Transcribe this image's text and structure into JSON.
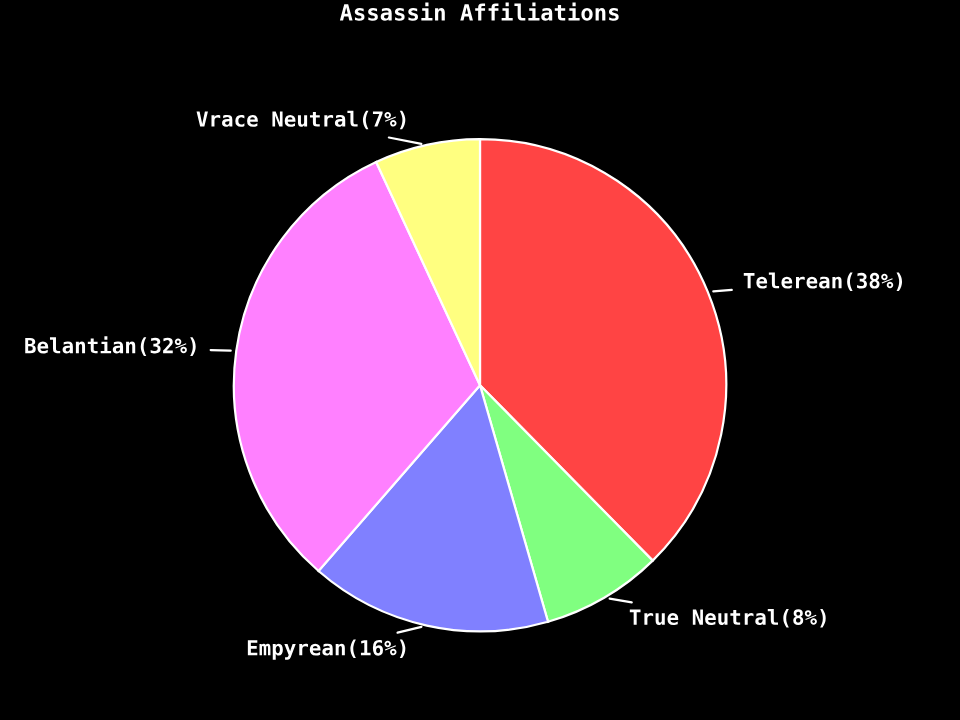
{
  "chart_data": {
    "type": "pie",
    "title": "Assassin Affiliations",
    "categories": [
      "Telerean(38%)",
      "True Neutral(8%)",
      "Empyrean(16%)",
      "Belantian(32%)",
      "Vrace Neutral(7%)"
    ],
    "values": [
      38,
      8,
      16,
      32,
      7
    ],
    "colors": [
      "#ff4444",
      "#80ff80",
      "#8080ff",
      "#ff80ff",
      "#ffff80"
    ],
    "legend": false
  }
}
